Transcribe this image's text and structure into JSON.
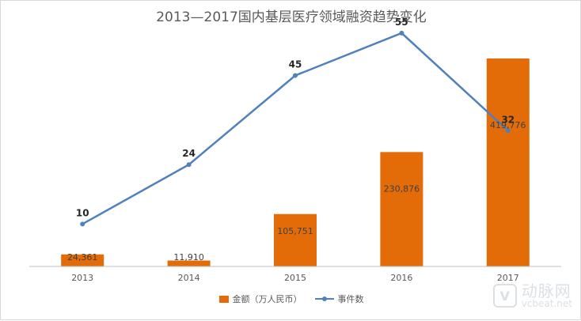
{
  "chart_data": {
    "type": "bar",
    "title": "2013—2017国内基层医疗领域融资趋势变化",
    "categories": [
      "2013",
      "2014",
      "2015",
      "2016",
      "2017"
    ],
    "series": [
      {
        "name": "金额（万人民币）",
        "type": "bar",
        "axis": "primary",
        "values": [
          24361,
          11910,
          105751,
          230876,
          419776
        ],
        "labels": [
          "24,361",
          "11,910",
          "105,751",
          "230,876",
          "419,776"
        ],
        "color": "#E36C09"
      },
      {
        "name": "事件数",
        "type": "line",
        "axis": "secondary",
        "values": [
          10,
          24,
          45,
          55,
          32
        ],
        "labels": [
          "10",
          "24",
          "45",
          "55",
          "32"
        ],
        "color": "#4F81BD"
      }
    ],
    "ylim": [
      0,
      450000
    ],
    "y2lim": [
      0,
      60
    ],
    "grid": false,
    "legend_position": "bottom"
  },
  "watermark": {
    "cn": "动脉网",
    "en": "vcbeat.net",
    "mark": "V"
  }
}
